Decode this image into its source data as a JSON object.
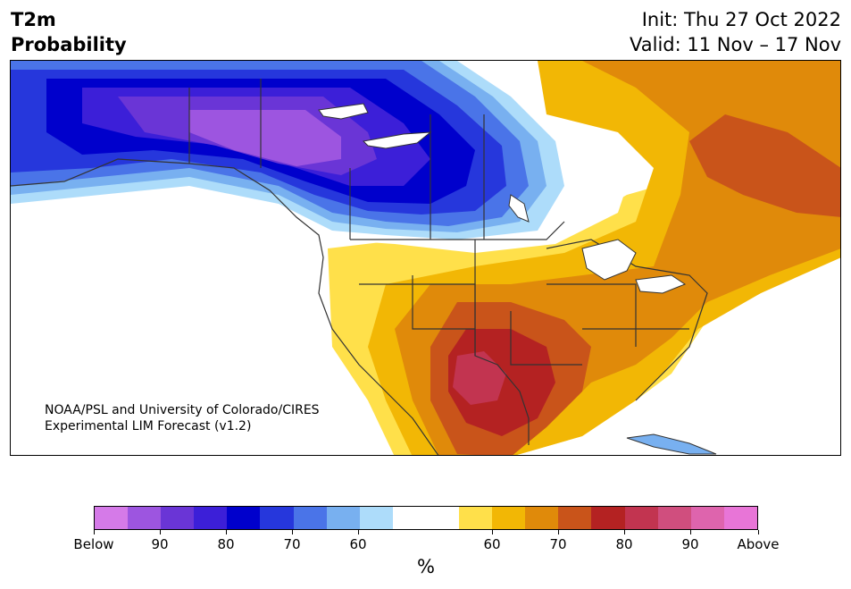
{
  "title": {
    "line1": "T2m",
    "line2": "Probability"
  },
  "valid": {
    "init": "Init: Thu 27 Oct 2022",
    "range": "Valid: 11 Nov – 17 Nov"
  },
  "credit": {
    "line1": "NOAA/PSL and University of Colorado/CIRES",
    "line2": "Experimental LIM Forecast (v1.2)"
  },
  "colorbar": {
    "unit": "%",
    "colors": [
      "#d57ae8",
      "#9d55e0",
      "#6a35d6",
      "#3c1fd8",
      "#0000cc",
      "#2637dc",
      "#4a74e8",
      "#78b0f0",
      "#addcfa",
      "#ffffff",
      "#ffffff",
      "#ffe04a",
      "#f2b705",
      "#e08a0a",
      "#c9541a",
      "#b42222",
      "#c23450",
      "#d04e7e",
      "#de64ad",
      "#e875d7"
    ],
    "tick_labels": [
      "Below",
      "90",
      "80",
      "70",
      "60",
      "60",
      "70",
      "80",
      "90",
      "Above"
    ]
  },
  "map": {
    "region": "North America",
    "colors": {
      "land": "#ffffff",
      "water": "#ffffff",
      "border": "#333333"
    }
  }
}
